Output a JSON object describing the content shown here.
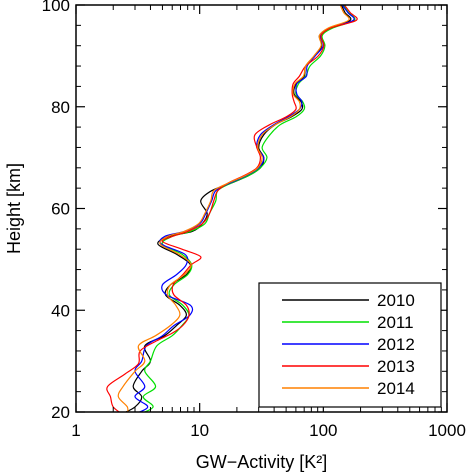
{
  "chart_data": {
    "type": "line",
    "xlabel": "GW−Activity [K²]",
    "ylabel": "Height [km]",
    "xscale": "log",
    "xlim": [
      1,
      1000
    ],
    "ylim": [
      20,
      100
    ],
    "x_ticks": [
      1,
      10,
      100,
      1000
    ],
    "x_tick_labels": [
      "1",
      "10",
      "100",
      "1000"
    ],
    "y_ticks": [
      20,
      40,
      60,
      80,
      100
    ],
    "y_tick_labels": [
      "20",
      "40",
      "60",
      "80",
      "100"
    ],
    "legend_position": "bottom-right",
    "grid": false,
    "series": [
      {
        "name": "2010",
        "color": "#000000",
        "points": [
          [
            2.3,
            19.5
          ],
          [
            3.0,
            21
          ],
          [
            3.4,
            23
          ],
          [
            2.9,
            25
          ],
          [
            3.4,
            28
          ],
          [
            4.0,
            30
          ],
          [
            3.6,
            33
          ],
          [
            5.2,
            35
          ],
          [
            6.5,
            37
          ],
          [
            7.8,
            39
          ],
          [
            6.9,
            41
          ],
          [
            5.3,
            43
          ],
          [
            5.8,
            45
          ],
          [
            7.8,
            47
          ],
          [
            8.4,
            49
          ],
          [
            6.5,
            51
          ],
          [
            4.6,
            53
          ],
          [
            5.6,
            54.5
          ],
          [
            8.7,
            55.5
          ],
          [
            10.5,
            57
          ],
          [
            11.5,
            59
          ],
          [
            10.2,
            61.5
          ],
          [
            12.5,
            63.5
          ],
          [
            18,
            65
          ],
          [
            25,
            66.5
          ],
          [
            31,
            68
          ],
          [
            33,
            70
          ],
          [
            30,
            72
          ],
          [
            33,
            74.5
          ],
          [
            41,
            76.5
          ],
          [
            55,
            78
          ],
          [
            67,
            79.5
          ],
          [
            66,
            81
          ],
          [
            58,
            82.5
          ],
          [
            60,
            84.5
          ],
          [
            70,
            86
          ],
          [
            72,
            88
          ],
          [
            85,
            90
          ],
          [
            97,
            92
          ],
          [
            93,
            94
          ],
          [
            112,
            95.5
          ],
          [
            165,
            97
          ],
          [
            150,
            98.5
          ],
          [
            140,
            100
          ]
        ]
      },
      {
        "name": "2011",
        "color": "#00e000",
        "points": [
          [
            3.2,
            19.5
          ],
          [
            4.2,
            21
          ],
          [
            3.5,
            23
          ],
          [
            4.4,
            25
          ],
          [
            3.6,
            28
          ],
          [
            4.0,
            30
          ],
          [
            4.5,
            33
          ],
          [
            6.0,
            35
          ],
          [
            7.2,
            37
          ],
          [
            8.2,
            39
          ],
          [
            7.3,
            41
          ],
          [
            5.7,
            43
          ],
          [
            6.2,
            45
          ],
          [
            8.0,
            47
          ],
          [
            8.6,
            49
          ],
          [
            7.2,
            51
          ],
          [
            5.0,
            53
          ],
          [
            6.0,
            54.5
          ],
          [
            8.4,
            55.5
          ],
          [
            11,
            57
          ],
          [
            12,
            59
          ],
          [
            13.5,
            61.5
          ],
          [
            14,
            63.5
          ],
          [
            18,
            65
          ],
          [
            25,
            66.5
          ],
          [
            31,
            68
          ],
          [
            35,
            70
          ],
          [
            32,
            72
          ],
          [
            37,
            74.5
          ],
          [
            45,
            76.5
          ],
          [
            60,
            78
          ],
          [
            70,
            79.5
          ],
          [
            68,
            81
          ],
          [
            60,
            82.5
          ],
          [
            63,
            84.5
          ],
          [
            72,
            86
          ],
          [
            78,
            88
          ],
          [
            95,
            90
          ],
          [
            103,
            92
          ],
          [
            98,
            94
          ],
          [
            120,
            95.5
          ],
          [
            178,
            97
          ],
          [
            160,
            98.5
          ],
          [
            145,
            100
          ]
        ]
      },
      {
        "name": "2012",
        "color": "#0000ff",
        "points": [
          [
            2.9,
            19.5
          ],
          [
            3.8,
            21
          ],
          [
            3.0,
            23
          ],
          [
            3.6,
            25
          ],
          [
            3.0,
            28
          ],
          [
            3.4,
            30
          ],
          [
            3.7,
            33
          ],
          [
            5.0,
            35
          ],
          [
            6.2,
            37
          ],
          [
            8.3,
            39
          ],
          [
            8.4,
            41
          ],
          [
            5.4,
            43
          ],
          [
            5.0,
            45
          ],
          [
            6.5,
            47
          ],
          [
            7.8,
            49
          ],
          [
            7.6,
            51
          ],
          [
            4.9,
            53
          ],
          [
            5.2,
            54.5
          ],
          [
            7.5,
            55.5
          ],
          [
            10,
            57
          ],
          [
            11.2,
            59
          ],
          [
            12.5,
            61.5
          ],
          [
            13.5,
            63.5
          ],
          [
            17.5,
            65
          ],
          [
            24,
            66.5
          ],
          [
            30,
            68
          ],
          [
            33,
            70
          ],
          [
            29,
            72
          ],
          [
            31,
            74.5
          ],
          [
            40,
            76.5
          ],
          [
            52,
            78
          ],
          [
            64,
            79.5
          ],
          [
            67,
            81
          ],
          [
            61,
            82.5
          ],
          [
            61,
            84.5
          ],
          [
            73,
            86
          ],
          [
            74,
            88
          ],
          [
            86,
            90
          ],
          [
            100,
            92
          ],
          [
            95,
            94
          ],
          [
            114,
            95.5
          ],
          [
            175,
            97
          ],
          [
            158,
            98.5
          ],
          [
            142,
            100
          ]
        ]
      },
      {
        "name": "2013",
        "color": "#ff0000",
        "points": [
          [
            2.4,
            19.5
          ],
          [
            2.0,
            21
          ],
          [
            1.9,
            23
          ],
          [
            1.8,
            25
          ],
          [
            2.5,
            27.5
          ],
          [
            3.2,
            29.5
          ],
          [
            3.3,
            32
          ],
          [
            4.5,
            34
          ],
          [
            6.0,
            35.5
          ],
          [
            7.3,
            37
          ],
          [
            8.2,
            39
          ],
          [
            7.8,
            41
          ],
          [
            6.2,
            43
          ],
          [
            6.1,
            45
          ],
          [
            7.3,
            47
          ],
          [
            8.6,
            49
          ],
          [
            10.2,
            50.5
          ],
          [
            7.2,
            52
          ],
          [
            5.0,
            53.5
          ],
          [
            6.0,
            54.5
          ],
          [
            8.0,
            55.5
          ],
          [
            10.5,
            57
          ],
          [
            12,
            59
          ],
          [
            13,
            61.5
          ],
          [
            14,
            63.5
          ],
          [
            17,
            65
          ],
          [
            23,
            66.5
          ],
          [
            29,
            68
          ],
          [
            31,
            70
          ],
          [
            29,
            72
          ],
          [
            28,
            74.5
          ],
          [
            37,
            76.5
          ],
          [
            50,
            78
          ],
          [
            60,
            79.5
          ],
          [
            58,
            81
          ],
          [
            56,
            82.5
          ],
          [
            57,
            84.5
          ],
          [
            64,
            86
          ],
          [
            72,
            88
          ],
          [
            91,
            90
          ],
          [
            101,
            92
          ],
          [
            96,
            94
          ],
          [
            115,
            95.5
          ],
          [
            185,
            97
          ],
          [
            165,
            98.5
          ],
          [
            148,
            100
          ]
        ]
      },
      {
        "name": "2014",
        "color": "#ff8000",
        "points": [
          [
            2.6,
            19.5
          ],
          [
            2.6,
            21
          ],
          [
            2.2,
            23
          ],
          [
            2.4,
            25
          ],
          [
            3.0,
            28
          ],
          [
            3.6,
            30
          ],
          [
            3.2,
            33
          ],
          [
            4.4,
            35
          ],
          [
            5.8,
            37
          ],
          [
            6.9,
            39
          ],
          [
            6.4,
            41
          ],
          [
            5.5,
            43
          ],
          [
            5.8,
            45
          ],
          [
            7.5,
            47
          ],
          [
            8.5,
            49
          ],
          [
            6.8,
            51
          ],
          [
            4.8,
            53
          ],
          [
            5.5,
            54.5
          ],
          [
            7.5,
            55.5
          ],
          [
            9.8,
            57
          ],
          [
            11,
            59
          ],
          [
            12.3,
            61.5
          ],
          [
            13,
            63.5
          ],
          [
            17,
            65
          ],
          [
            23.5,
            66.5
          ],
          [
            29.5,
            68
          ],
          [
            32,
            70
          ],
          [
            29.5,
            72
          ],
          [
            32,
            74.5
          ],
          [
            41,
            76.5
          ],
          [
            54,
            78
          ],
          [
            64,
            79.5
          ],
          [
            64,
            81
          ],
          [
            57,
            82.5
          ],
          [
            59,
            84.5
          ],
          [
            69,
            86
          ],
          [
            72,
            88
          ],
          [
            84,
            90
          ],
          [
            96,
            92
          ],
          [
            93,
            94
          ],
          [
            110,
            95.5
          ],
          [
            160,
            97
          ],
          [
            146,
            98.5
          ],
          [
            137,
            100
          ]
        ]
      }
    ]
  }
}
